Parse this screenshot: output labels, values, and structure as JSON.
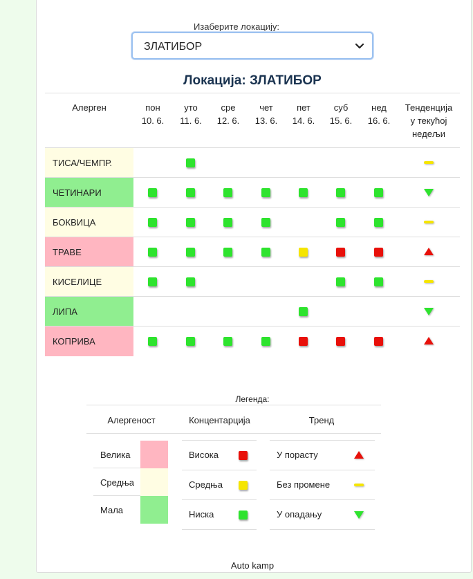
{
  "location_select": {
    "label": "Изаберите локацију:",
    "value": "ЗЛАТИБОР"
  },
  "location_title": "Локација: ЗЛАТИБОР",
  "table": {
    "allergen_header": "Алерген",
    "trend_header": [
      "Тенденција",
      "у текућој",
      "недељи"
    ],
    "days": [
      {
        "name": "пон",
        "date": "10. 6."
      },
      {
        "name": "уто",
        "date": "11. 6."
      },
      {
        "name": "сре",
        "date": "12. 6."
      },
      {
        "name": "чет",
        "date": "13. 6."
      },
      {
        "name": "пет",
        "date": "14. 6."
      },
      {
        "name": "суб",
        "date": "15. 6."
      },
      {
        "name": "нед",
        "date": "16. 6."
      }
    ],
    "rows": [
      {
        "label": "ТИСА/ЧЕМПР.",
        "allergenicity": "medium",
        "levels": [
          "",
          "low",
          "",
          "",
          "",
          "",
          ""
        ],
        "trend": "no-change"
      },
      {
        "label": "ЧЕТИНАРИ",
        "allergenicity": "low",
        "levels": [
          "low",
          "low",
          "low",
          "low",
          "low",
          "low",
          "low"
        ],
        "trend": "falling"
      },
      {
        "label": "БОКВИЦА",
        "allergenicity": "medium",
        "levels": [
          "low",
          "low",
          "low",
          "low",
          "",
          "low",
          "low"
        ],
        "trend": "no-change"
      },
      {
        "label": "ТРАВЕ",
        "allergenicity": "high",
        "levels": [
          "low",
          "low",
          "low",
          "low",
          "medium",
          "high",
          "high"
        ],
        "trend": "rising"
      },
      {
        "label": "КИСЕЛИЦЕ",
        "allergenicity": "medium",
        "levels": [
          "low",
          "low",
          "",
          "",
          "",
          "low",
          "low"
        ],
        "trend": "no-change"
      },
      {
        "label": "ЛИПА",
        "allergenicity": "low",
        "levels": [
          "",
          "",
          "",
          "",
          "low",
          "",
          ""
        ],
        "trend": "falling"
      },
      {
        "label": "КОПРИВА",
        "allergenicity": "high",
        "levels": [
          "low",
          "low",
          "low",
          "low",
          "high",
          "high",
          "high"
        ],
        "trend": "rising"
      }
    ]
  },
  "legend": {
    "title": "Легенда:",
    "allergenicity": {
      "header": "Алергеност",
      "items": [
        "Велика",
        "Средња",
        "Мала"
      ]
    },
    "concentration": {
      "header": "Концентарција",
      "items": [
        "Висока",
        "Средња",
        "Ниска"
      ]
    },
    "trend": {
      "header": "Тренд",
      "items": [
        "У порасту",
        "Без промене",
        "У опадању"
      ]
    }
  },
  "footer": "Auto kamp",
  "colors": {
    "high_bg": "#ffb6c1",
    "medium_bg": "#fffde3",
    "low_bg": "#90ee90",
    "sq_low": "#2ee32e",
    "sq_medium": "#f5e500",
    "sq_high": "#e8100a",
    "trend_up": "#e8100a",
    "trend_flat": "#f5e500",
    "trend_down": "#2ee32e"
  }
}
